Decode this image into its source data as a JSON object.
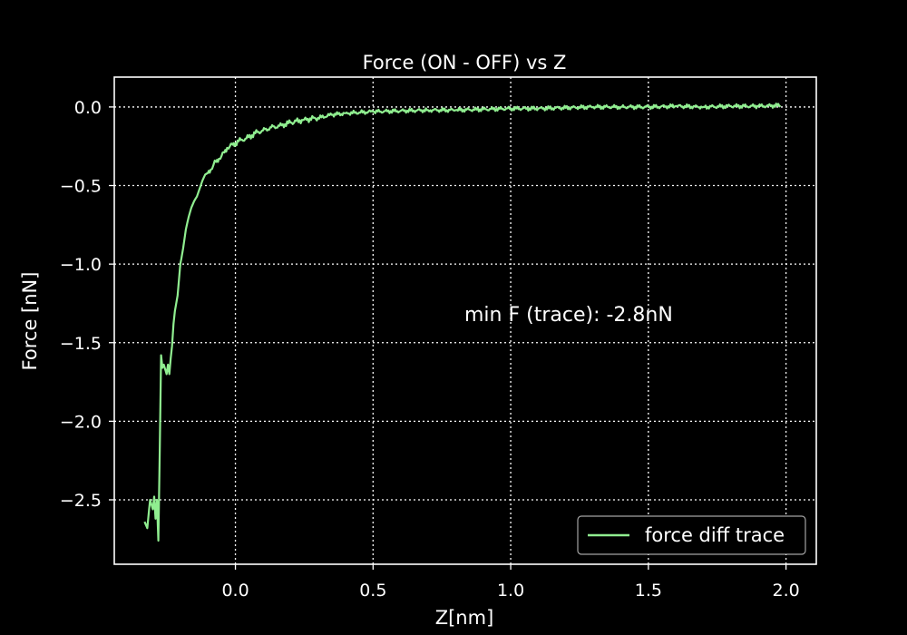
{
  "chart_data": {
    "type": "line",
    "title": "Force (ON - OFF) vs Z",
    "xlabel": "Z[nm]",
    "ylabel": "Force [nN]",
    "xlim": [
      -0.44,
      2.11
    ],
    "ylim": [
      -2.91,
      0.19
    ],
    "xticks": [
      0.0,
      0.5,
      1.0,
      1.5,
      2.0
    ],
    "xtick_labels": [
      "0.0",
      "0.5",
      "1.0",
      "1.5",
      "2.0"
    ],
    "yticks": [
      0.0,
      -0.5,
      -1.0,
      -1.5,
      -2.0,
      -2.5
    ],
    "ytick_labels": [
      "0.0",
      "−0.5",
      "−1.0",
      "−1.5",
      "−2.0",
      "−2.5"
    ],
    "grid": true,
    "legend_position": "lower-right",
    "annotation": "min F (trace): -2.8nN",
    "series": [
      {
        "name": "force diff trace",
        "color": "#90ee90",
        "x": [
          -0.33,
          -0.32,
          -0.31,
          -0.3,
          -0.295,
          -0.29,
          -0.285,
          -0.28,
          -0.275,
          -0.27,
          -0.265,
          -0.26,
          -0.25,
          -0.245,
          -0.24,
          -0.235,
          -0.23,
          -0.225,
          -0.22,
          -0.21,
          -0.2,
          -0.19,
          -0.18,
          -0.17,
          -0.16,
          -0.15,
          -0.14,
          -0.13,
          -0.12,
          -0.11,
          -0.1,
          -0.09,
          -0.08,
          -0.07,
          -0.06,
          -0.05,
          -0.04,
          -0.03,
          -0.02,
          -0.01,
          0.0,
          0.02,
          0.04,
          0.06,
          0.08,
          0.1,
          0.13,
          0.16,
          0.2,
          0.25,
          0.3,
          0.35,
          0.4,
          0.45,
          0.5,
          0.6,
          0.7,
          0.8,
          0.9,
          1.0,
          1.1,
          1.2,
          1.3,
          1.4,
          1.5,
          1.6,
          1.7,
          1.8,
          1.9,
          1.98
        ],
        "y": [
          -2.64,
          -2.68,
          -2.5,
          -2.56,
          -2.48,
          -2.62,
          -2.5,
          -2.76,
          -2.2,
          -1.58,
          -1.66,
          -1.64,
          -1.7,
          -1.64,
          -1.7,
          -1.6,
          -1.52,
          -1.38,
          -1.3,
          -1.2,
          -1.0,
          -0.9,
          -0.78,
          -0.7,
          -0.64,
          -0.6,
          -0.57,
          -0.52,
          -0.47,
          -0.43,
          -0.42,
          -0.4,
          -0.37,
          -0.35,
          -0.33,
          -0.31,
          -0.29,
          -0.26,
          -0.25,
          -0.24,
          -0.23,
          -0.21,
          -0.2,
          -0.18,
          -0.16,
          -0.15,
          -0.13,
          -0.12,
          -0.1,
          -0.08,
          -0.07,
          -0.05,
          -0.04,
          -0.035,
          -0.03,
          -0.025,
          -0.02,
          -0.02,
          -0.015,
          -0.01,
          -0.01,
          -0.005,
          0.0,
          0.0,
          0.0,
          0.005,
          0.0,
          0.005,
          0.005,
          0.01
        ]
      }
    ]
  }
}
